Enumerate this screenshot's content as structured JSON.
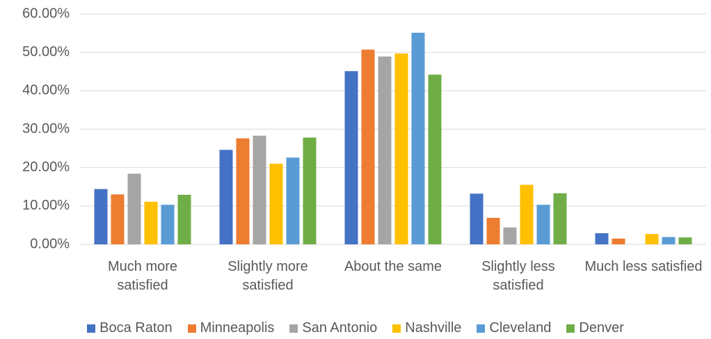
{
  "chart_data": {
    "type": "bar",
    "categories": [
      "Much more satisfied",
      "Slightly more satisfied",
      "About the same",
      "Slightly less satisfied",
      "Much less satisfied"
    ],
    "series": [
      {
        "name": "Boca Raton",
        "color": "#4472c4",
        "values": [
          14.4,
          24.6,
          45.1,
          13.2,
          2.9
        ]
      },
      {
        "name": "Minneapolis",
        "color": "#ed7d31",
        "values": [
          13.0,
          27.6,
          50.7,
          6.9,
          1.5
        ]
      },
      {
        "name": "San Antonio",
        "color": "#a5a5a5",
        "values": [
          18.4,
          28.3,
          48.9,
          4.4,
          0
        ]
      },
      {
        "name": "Nashville",
        "color": "#ffc000",
        "values": [
          11.1,
          21.0,
          49.7,
          15.5,
          2.7
        ]
      },
      {
        "name": "Cleveland",
        "color": "#5b9bd5",
        "values": [
          10.3,
          22.6,
          55.1,
          10.3,
          1.9
        ]
      },
      {
        "name": "Denver",
        "color": "#70ad47",
        "values": [
          12.9,
          27.8,
          44.2,
          13.3,
          1.8
        ]
      }
    ],
    "ylim": [
      0,
      60
    ],
    "yticks": [
      {
        "value": 0,
        "label": "0.00%"
      },
      {
        "value": 10,
        "label": "10.00%"
      },
      {
        "value": 20,
        "label": "20.00%"
      },
      {
        "value": 30,
        "label": "30.00%"
      },
      {
        "value": 40,
        "label": "40.00%"
      },
      {
        "value": 50,
        "label": "50.00%"
      },
      {
        "value": 60,
        "label": "60.00%"
      }
    ],
    "grid": true,
    "legend": "bottom"
  }
}
